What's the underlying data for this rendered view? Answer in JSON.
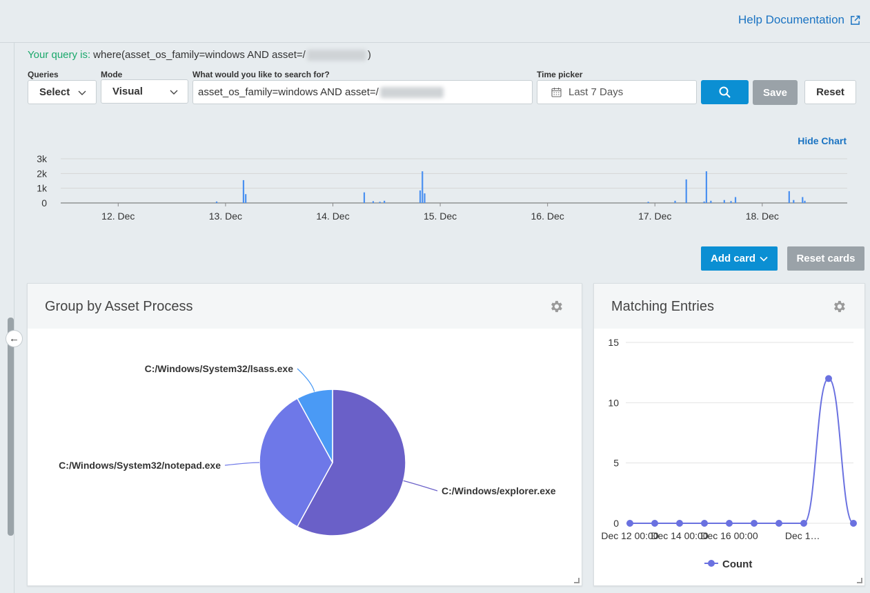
{
  "header": {
    "help_label": "Help Documentation"
  },
  "query": {
    "lead": "Your query is:",
    "text_prefix": "where(asset_os_family=windows AND asset=/",
    "text_suffix": ")"
  },
  "controls": {
    "queries_label": "Queries",
    "queries_value": "Select",
    "mode_label": "Mode",
    "mode_value": "Visual",
    "search_label": "What would you like to search for?",
    "search_value": "asset_os_family=windows AND asset=/",
    "time_label": "Time picker",
    "time_value": "Last 7 Days",
    "save_label": "Save",
    "reset_label": "Reset"
  },
  "histogram": {
    "hide_label": "Hide Chart",
    "chart_data": {
      "type": "bar",
      "y_ticks": [
        "3k",
        "2k",
        "1k",
        "0"
      ],
      "ylim": [
        0,
        3000
      ],
      "x_ticks": [
        "12. Dec",
        "13. Dec",
        "14. Dec",
        "15. Dec",
        "16. Dec",
        "17. Dec",
        "18. Dec"
      ],
      "x_start": "2023-12-11T13:00",
      "x_end": "2023-12-18T19:00",
      "bars": [
        {
          "t": "2023-12-12T22:00",
          "v": 100
        },
        {
          "t": "2023-12-13T04:00",
          "v": 1550
        },
        {
          "t": "2023-12-13T04:30",
          "v": 600
        },
        {
          "t": "2023-12-14T07:00",
          "v": 720
        },
        {
          "t": "2023-12-14T09:00",
          "v": 120
        },
        {
          "t": "2023-12-14T10:30",
          "v": 80
        },
        {
          "t": "2023-12-14T11:30",
          "v": 150
        },
        {
          "t": "2023-12-14T19:30",
          "v": 850
        },
        {
          "t": "2023-12-14T20:00",
          "v": 2150
        },
        {
          "t": "2023-12-14T20:30",
          "v": 650
        },
        {
          "t": "2023-12-16T22:30",
          "v": 80
        },
        {
          "t": "2023-12-17T04:30",
          "v": 150
        },
        {
          "t": "2023-12-17T07:00",
          "v": 1600
        },
        {
          "t": "2023-12-17T11:00",
          "v": 100
        },
        {
          "t": "2023-12-17T11:30",
          "v": 2150
        },
        {
          "t": "2023-12-17T12:30",
          "v": 150
        },
        {
          "t": "2023-12-17T15:30",
          "v": 200
        },
        {
          "t": "2023-12-17T17:00",
          "v": 130
        },
        {
          "t": "2023-12-17T18:00",
          "v": 400
        },
        {
          "t": "2023-12-18T06:00",
          "v": 800
        },
        {
          "t": "2023-12-18T07:00",
          "v": 200
        },
        {
          "t": "2023-12-18T09:00",
          "v": 400
        },
        {
          "t": "2023-12-18T09:30",
          "v": 150
        }
      ]
    }
  },
  "cards_bar": {
    "add_label": "Add card",
    "reset_label": "Reset cards"
  },
  "card_process": {
    "title": "Group by Asset Process",
    "chart_data": {
      "type": "pie",
      "slices": [
        {
          "label": "C:/Windows/explorer.exe",
          "value": 58,
          "color": "#6a60c8"
        },
        {
          "label": "C:/Windows/System32/notepad.exe",
          "value": 34,
          "color": "#6e78e8"
        },
        {
          "label": "C:/Windows/System32/lsass.exe",
          "value": 8,
          "color": "#4a9af5"
        }
      ]
    }
  },
  "card_entries": {
    "title": "Matching Entries",
    "chart_data": {
      "type": "line",
      "series": [
        {
          "name": "Count",
          "color": "#6a71e0",
          "x": [
            "Dec 12 00:00",
            "Dec 13 00:00",
            "Dec 14 00:00",
            "Dec 15 00:00",
            "Dec 16 00:00",
            "Dec 17 00:00",
            "Dec 18 00:00",
            "Dec 19 00:00",
            "Dec 20 00:00",
            "Dec 21 00:00"
          ],
          "values": [
            0,
            0,
            0,
            0,
            0,
            0,
            0,
            0,
            12,
            0
          ]
        }
      ],
      "y_ticks": [
        0,
        5,
        10,
        15
      ],
      "ylim": [
        0,
        15
      ],
      "x_tick_labels": [
        "Dec 12 00:00",
        "Dec 14 00:00",
        "Dec 16 00:00",
        "Dec 1…"
      ]
    }
  }
}
